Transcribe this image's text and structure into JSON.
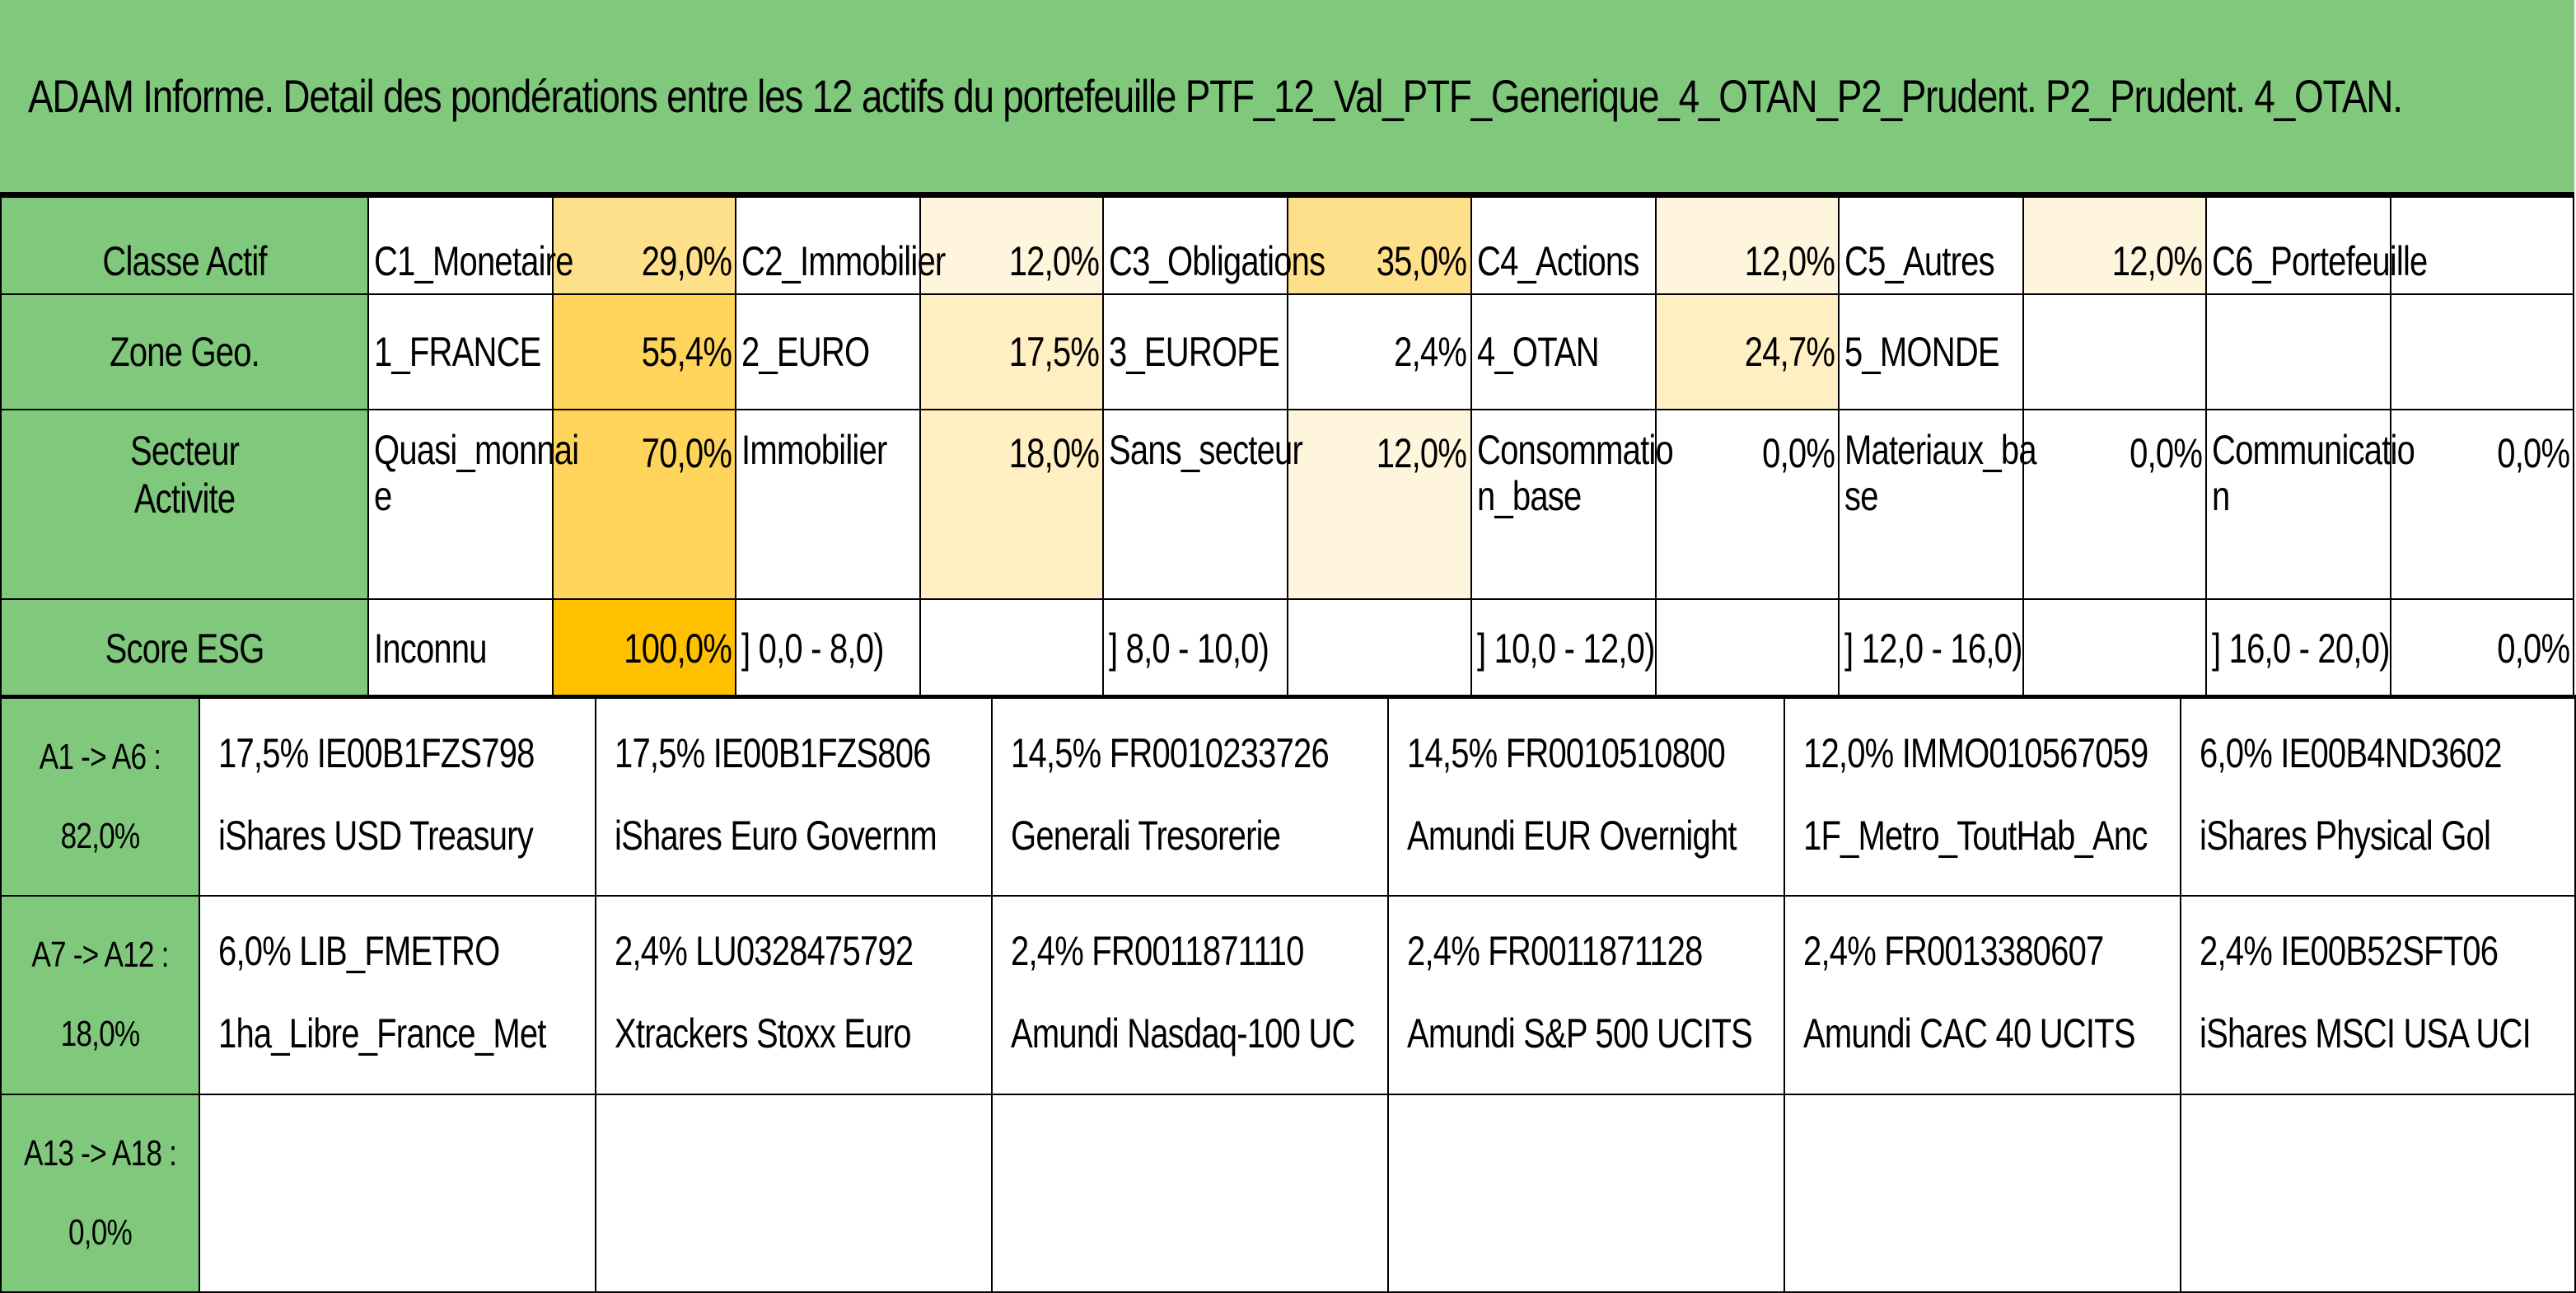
{
  "title": "ADAM Informe. Detail des pondérations entre les 12 actifs du portefeuille PTF_12_Val_PTF_Generique_4_OTAN_P2_Prudent. P2_Prudent. 4_OTAN.",
  "colors": {
    "header_green": "#80c97c",
    "heat_low": "#fff4dc",
    "heat_light": "#ffefc2",
    "heat_mid": "#ffe08a",
    "heat_high": "#ffd45a",
    "heat_max": "#ffc000"
  },
  "summary": {
    "asset_class": {
      "label": "Classe Actif",
      "cells": [
        {
          "name": "C1_Monetaire",
          "value": "29,0%",
          "heat": "mid"
        },
        {
          "name": "C2_Immobilier",
          "value": "12,0%",
          "heat": "low"
        },
        {
          "name": "C3_Obligations",
          "value": "35,0%",
          "heat": "mid"
        },
        {
          "name": "C4_Actions",
          "value": "12,0%",
          "heat": "low"
        },
        {
          "name": "C5_Autres",
          "value": "12,0%",
          "heat": "low"
        },
        {
          "name": "C6_Portefeuille",
          "value": "",
          "heat": "none"
        }
      ]
    },
    "zone": {
      "label": "Zone Geo.",
      "cells": [
        {
          "name": "1_FRANCE",
          "value": "55,4%",
          "heat": "high"
        },
        {
          "name": "2_EURO",
          "value": "17,5%",
          "heat": "light"
        },
        {
          "name": "3_EUROPE",
          "value": "2,4%",
          "heat": "none"
        },
        {
          "name": "4_OTAN",
          "value": "24,7%",
          "heat": "light"
        },
        {
          "name": "5_MONDE",
          "value": "",
          "heat": "none"
        },
        {
          "name": "",
          "value": "",
          "heat": "none"
        }
      ]
    },
    "sector": {
      "label_line1": "Secteur",
      "label_line2": "Activite",
      "cells": [
        {
          "name_l1": "Quasi_monnai",
          "name_l2": "e",
          "value": "70,0%",
          "heat": "high"
        },
        {
          "name_l1": "Immobilier",
          "name_l2": "",
          "value": "18,0%",
          "heat": "light"
        },
        {
          "name_l1": "Sans_secteur",
          "name_l2": "",
          "value": "12,0%",
          "heat": "low"
        },
        {
          "name_l1": "Consommatio",
          "name_l2": "n_base",
          "value": "0,0%",
          "heat": "none"
        },
        {
          "name_l1": "Materiaux_ba",
          "name_l2": "se",
          "value": "0,0%",
          "heat": "none"
        },
        {
          "name_l1": "Communicatio",
          "name_l2": "n",
          "value": "0,0%",
          "heat": "none"
        }
      ]
    },
    "esg": {
      "label": "Score ESG",
      "cells": [
        {
          "name": "Inconnu",
          "value": "100,0%",
          "heat": "max"
        },
        {
          "name": "] 0,0 - 8,0)",
          "value": "",
          "heat": "none"
        },
        {
          "name": "] 8,0 - 10,0)",
          "value": "",
          "heat": "none"
        },
        {
          "name": "] 10,0 - 12,0)",
          "value": "",
          "heat": "none"
        },
        {
          "name": "] 12,0 - 16,0)",
          "value": "",
          "heat": "none"
        },
        {
          "name": "] 16,0 - 20,0)",
          "value": "0,0%",
          "heat": "none"
        }
      ]
    }
  },
  "assets": [
    {
      "label_l1": "A1 -> A6 :",
      "label_l2": "82,0%",
      "items": [
        {
          "line1": "17,5% IE00B1FZS798",
          "line2": "iShares USD Treasury"
        },
        {
          "line1": "17,5% IE00B1FZS806",
          "line2": "iShares Euro Governm"
        },
        {
          "line1": "14,5% FR0010233726",
          "line2": "Generali Tresorerie"
        },
        {
          "line1": "14,5% FR0010510800",
          "line2": "Amundi EUR Overnight"
        },
        {
          "line1": "12,0% IMMO010567059",
          "line2": "1F_Metro_ToutHab_Anc"
        },
        {
          "line1": "6,0% IE00B4ND3602",
          "line2": "iShares Physical Gol"
        }
      ]
    },
    {
      "label_l1": "A7 -> A12 :",
      "label_l2": "18,0%",
      "items": [
        {
          "line1": "6,0% LIB_FMETRO",
          "line2": "1ha_Libre_France_Met"
        },
        {
          "line1": "2,4% LU0328475792",
          "line2": "Xtrackers Stoxx Euro"
        },
        {
          "line1": "2,4% FR0011871110",
          "line2": "Amundi Nasdaq-100 UC"
        },
        {
          "line1": "2,4% FR0011871128",
          "line2": "Amundi S&P 500 UCITS"
        },
        {
          "line1": "2,4% FR0013380607",
          "line2": "Amundi CAC 40 UCITS"
        },
        {
          "line1": "2,4% IE00B52SFT06",
          "line2": "iShares MSCI USA UCI"
        }
      ]
    },
    {
      "label_l1": "A13 -> A18 :",
      "label_l2": "0,0%",
      "items": [
        {
          "line1": "",
          "line2": ""
        },
        {
          "line1": "",
          "line2": ""
        },
        {
          "line1": "",
          "line2": ""
        },
        {
          "line1": "",
          "line2": ""
        },
        {
          "line1": "",
          "line2": ""
        },
        {
          "line1": "",
          "line2": ""
        }
      ]
    }
  ]
}
